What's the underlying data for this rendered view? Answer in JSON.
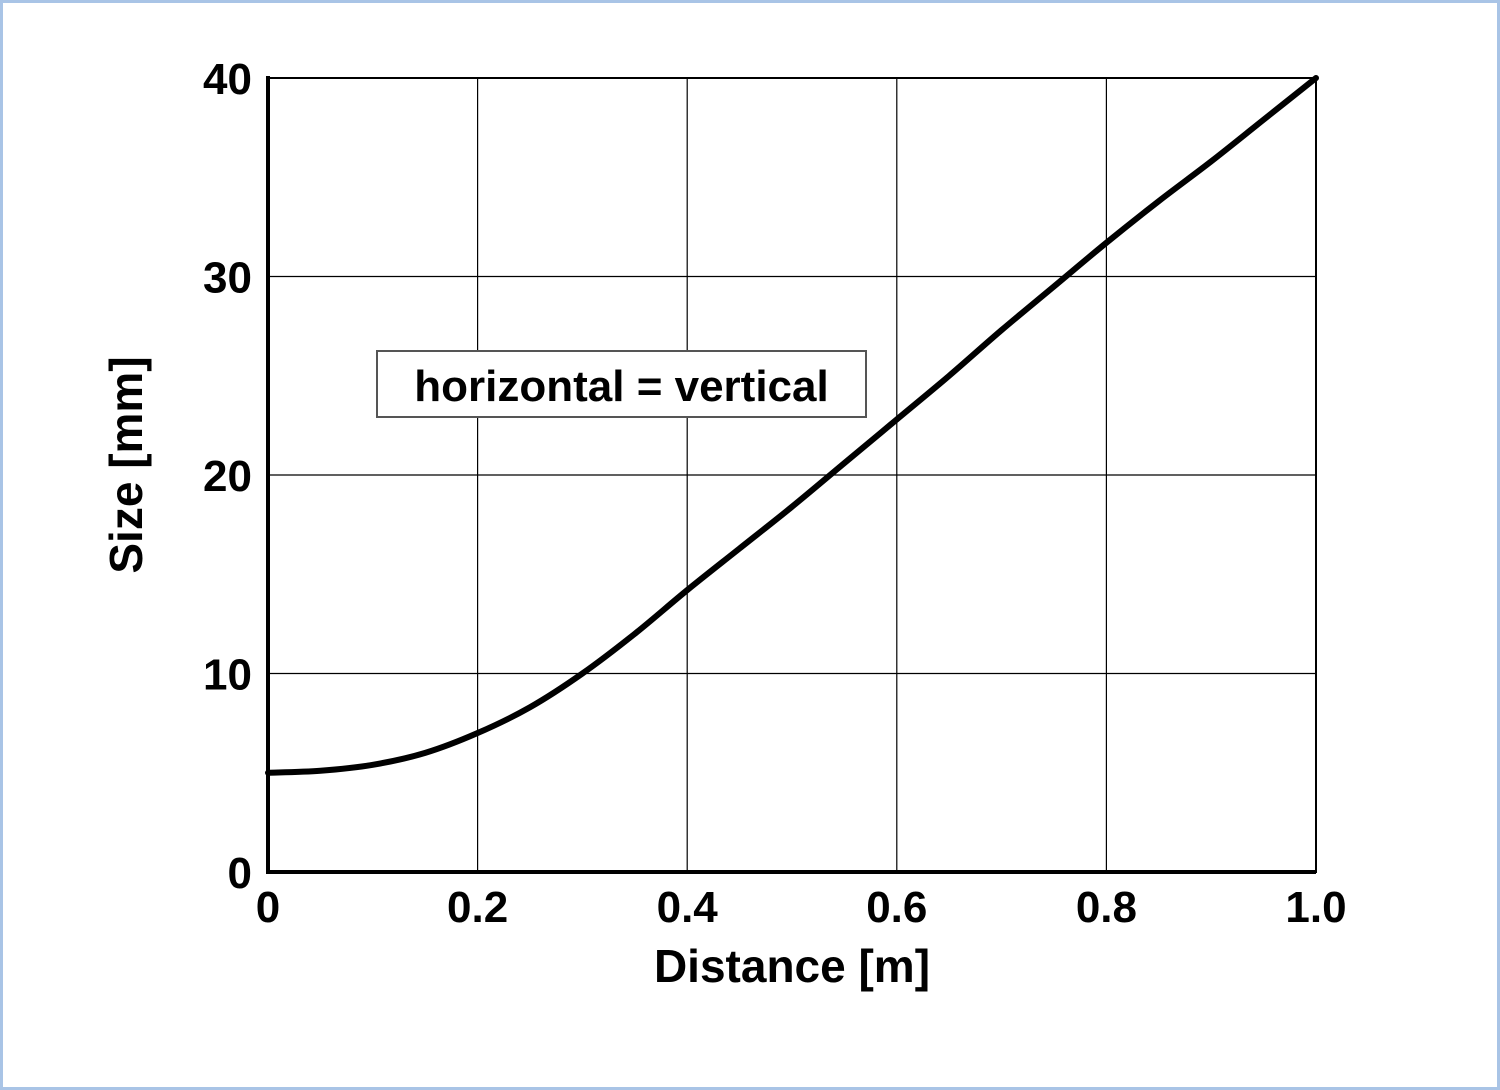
{
  "chart_data": {
    "type": "line",
    "title": "",
    "xlabel": "Distance [m]",
    "ylabel": "Size [mm]",
    "xlim": [
      0,
      1.0
    ],
    "ylim": [
      0,
      40
    ],
    "x_ticks": [
      "0",
      "0.2",
      "0.4",
      "0.6",
      "0.8",
      "1.0"
    ],
    "y_ticks": [
      "0",
      "10",
      "20",
      "30",
      "40"
    ],
    "grid": true,
    "annotation": "horizontal = vertical",
    "series": [
      {
        "color": "#000000",
        "x": [
          0,
          0.05,
          0.1,
          0.15,
          0.2,
          0.25,
          0.3,
          0.35,
          0.4,
          0.45,
          0.5,
          0.55,
          0.6,
          0.65,
          0.7,
          0.75,
          0.8,
          0.85,
          0.9,
          0.95,
          1.0
        ],
        "y": [
          5.0,
          5.1,
          5.4,
          6.0,
          7.0,
          8.3,
          10.0,
          12.0,
          14.2,
          16.3,
          18.4,
          20.6,
          22.8,
          25.0,
          27.3,
          29.5,
          31.7,
          33.8,
          35.8,
          37.9,
          40.0
        ]
      }
    ]
  }
}
